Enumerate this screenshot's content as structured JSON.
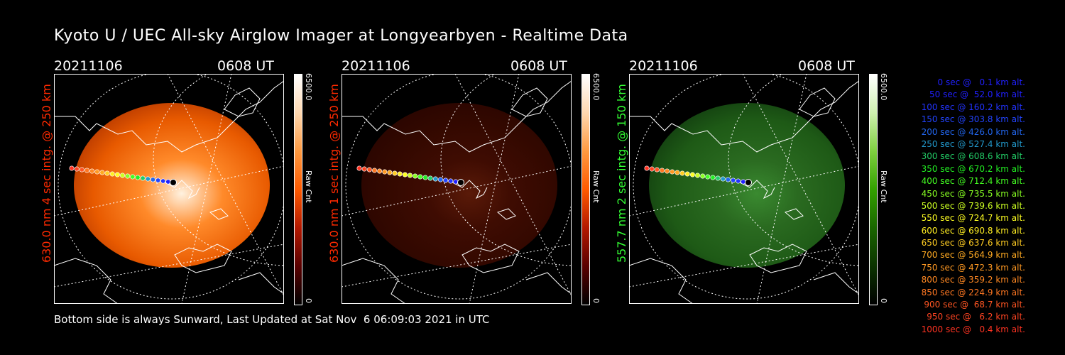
{
  "title": "Kyoto U / UEC All-sky Airglow Imager at Longyearbyen - Realtime Data",
  "panels": [
    {
      "date": "20211106",
      "time": "0608 UT",
      "ylabel": "630.0 nm 4 sec intg. @ 250 km",
      "label_color": "#ff2a00",
      "cbar_max": "6500.0",
      "cbar_min": "0",
      "cbar_unit": "Raw Cnt",
      "palette": "orange"
    },
    {
      "date": "20211106",
      "time": "0608 UT",
      "ylabel": "630.0 nm 1 sec intg. @ 250 km",
      "label_color": "#ff2a00",
      "cbar_max": "6500.0",
      "cbar_min": "0",
      "cbar_unit": "Raw Cnt",
      "palette": "darkred"
    },
    {
      "date": "20211106",
      "time": "0608 UT",
      "ylabel": "557.7 nm 2 sec intg. @ 150 km",
      "label_color": "#33ff33",
      "cbar_max": "6500.0",
      "cbar_min": "0",
      "cbar_unit": "Raw Cnt",
      "palette": "green"
    }
  ],
  "footer": "Bottom side is always Sunward, Last Updated at Sat Nov  6 06:09:03 2021 in UTC",
  "legend": [
    {
      "text": "0 sec @   0.1 km alt.",
      "color": "#2020ff"
    },
    {
      "text": "50 sec @  52.0 km alt.",
      "color": "#2020ff"
    },
    {
      "text": "100 sec @ 160.2 km alt.",
      "color": "#2233ff"
    },
    {
      "text": "150 sec @ 303.8 km alt.",
      "color": "#2244ff"
    },
    {
      "text": "200 sec @ 426.0 km alt.",
      "color": "#2266ee"
    },
    {
      "text": "250 sec @ 527.4 km alt.",
      "color": "#2299cc"
    },
    {
      "text": "300 sec @ 608.6 km alt.",
      "color": "#22cc66"
    },
    {
      "text": "350 sec @ 670.2 km alt.",
      "color": "#22ee22"
    },
    {
      "text": "400 sec @ 712.4 km alt.",
      "color": "#44ff22"
    },
    {
      "text": "450 sec @ 735.5 km alt.",
      "color": "#88ff22"
    },
    {
      "text": "500 sec @ 739.6 km alt.",
      "color": "#ccff22"
    },
    {
      "text": "550 sec @ 724.7 km alt.",
      "color": "#ffff22"
    },
    {
      "text": "600 sec @ 690.8 km alt.",
      "color": "#ffee22"
    },
    {
      "text": "650 sec @ 637.6 km alt.",
      "color": "#ffcc22"
    },
    {
      "text": "700 sec @ 564.9 km alt.",
      "color": "#ffaa22"
    },
    {
      "text": "750 sec @ 472.3 km alt.",
      "color": "#ff9922"
    },
    {
      "text": "800 sec @ 359.2 km alt.",
      "color": "#ff8822"
    },
    {
      "text": "850 sec @ 224.9 km alt.",
      "color": "#ff7722"
    },
    {
      "text": "900 sec @  68.7 km alt.",
      "color": "#ff5522"
    },
    {
      "text": "950 sec @   6.2 km alt.",
      "color": "#ff4422"
    },
    {
      "text": "1000 sec @   0.4 km alt.",
      "color": "#ff3322"
    }
  ]
}
